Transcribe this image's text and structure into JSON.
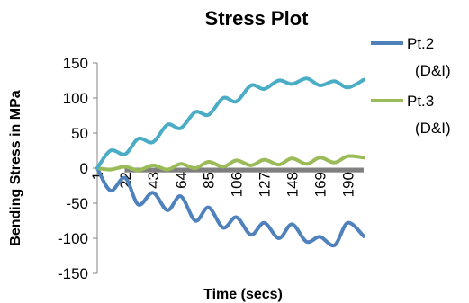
{
  "chart_data": {
    "type": "line",
    "title": "Stress Plot",
    "xlabel": "Time (secs)",
    "ylabel": "Bending Stress in MPa",
    "ylim": [
      -150,
      150
    ],
    "yticks": [
      "150",
      "100",
      "50",
      "0",
      "-50",
      "-100",
      "-150"
    ],
    "xticks": [
      "1",
      "22",
      "43",
      "64",
      "85",
      "106",
      "127",
      "148",
      "169",
      "190"
    ],
    "xlim": [
      1,
      202
    ],
    "grid": false,
    "legend_position": "right",
    "series": [
      {
        "name": "Pt.2 (D&I)",
        "color": "#4f81bd",
        "x": [
          1,
          11,
          22,
          32,
          43,
          54,
          64,
          75,
          85,
          96,
          106,
          117,
          127,
          138,
          148,
          159,
          169,
          180,
          190,
          202
        ],
        "values": [
          0,
          -32,
          -14,
          -52,
          -35,
          -60,
          -40,
          -75,
          -56,
          -85,
          -70,
          -95,
          -78,
          -100,
          -80,
          -105,
          -98,
          -110,
          -78,
          -97
        ]
      },
      {
        "name": "Pt.3 (D&I)",
        "color": "#9bbb59",
        "x": [
          1,
          11,
          22,
          32,
          43,
          54,
          64,
          75,
          85,
          96,
          106,
          117,
          127,
          138,
          148,
          159,
          169,
          180,
          190,
          202
        ],
        "values": [
          0,
          -2,
          2,
          -3,
          4,
          -2,
          6,
          0,
          9,
          2,
          11,
          4,
          12,
          5,
          14,
          6,
          15,
          8,
          17,
          15
        ]
      },
      {
        "name": "",
        "color": "#4bacc6",
        "x": [
          1,
          11,
          22,
          32,
          43,
          54,
          64,
          75,
          85,
          96,
          106,
          117,
          127,
          138,
          148,
          159,
          169,
          180,
          190,
          202
        ],
        "values": [
          0,
          25,
          20,
          42,
          37,
          62,
          57,
          80,
          76,
          100,
          95,
          118,
          113,
          125,
          120,
          128,
          118,
          124,
          115,
          126
        ]
      }
    ],
    "base_band": {
      "color": "#7f7f7f",
      "x_range": [
        22,
        202
      ],
      "y_range": [
        -6,
        0
      ]
    }
  }
}
